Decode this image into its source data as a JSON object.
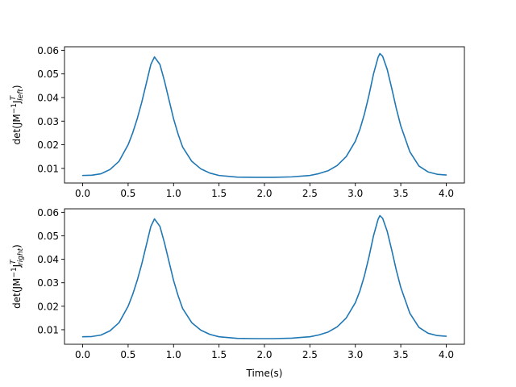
{
  "chart_data": [
    {
      "type": "line",
      "title": "",
      "xlabel": "",
      "ylabel": "det(JM^-1 J^T_left)",
      "ylabel_parts": {
        "pre": "det(JM",
        "sup1": "−1",
        "mid": "J",
        "sup2": "T",
        "sub": "left",
        "post": ")"
      },
      "xlim": [
        -0.2,
        4.2
      ],
      "ylim": [
        0.0038,
        0.0615
      ],
      "xticks": [
        0.0,
        0.5,
        1.0,
        1.5,
        2.0,
        2.5,
        3.0,
        3.5,
        4.0
      ],
      "xtick_labels": [
        "0.0",
        "0.5",
        "1.0",
        "1.5",
        "2.0",
        "2.5",
        "3.0",
        "3.5",
        "4.0"
      ],
      "yticks": [
        0.01,
        0.02,
        0.03,
        0.04,
        0.05,
        0.06
      ],
      "ytick_labels": [
        "0.01",
        "0.02",
        "0.03",
        "0.04",
        "0.05",
        "0.06"
      ],
      "grid": false,
      "legend": null,
      "color": "#1f77b4",
      "x": [
        0.0,
        0.1,
        0.2,
        0.3,
        0.4,
        0.5,
        0.55,
        0.6,
        0.65,
        0.7,
        0.75,
        0.79,
        0.85,
        0.9,
        0.95,
        1.0,
        1.05,
        1.1,
        1.2,
        1.3,
        1.4,
        1.5,
        1.7,
        1.9,
        2.1,
        2.3,
        2.5,
        2.6,
        2.7,
        2.8,
        2.9,
        3.0,
        3.05,
        3.1,
        3.15,
        3.2,
        3.25,
        3.27,
        3.3,
        3.35,
        3.4,
        3.45,
        3.5,
        3.6,
        3.7,
        3.8,
        3.9,
        4.0
      ],
      "y": [
        0.007,
        0.0071,
        0.0077,
        0.0095,
        0.013,
        0.02,
        0.025,
        0.031,
        0.038,
        0.046,
        0.054,
        0.0572,
        0.054,
        0.047,
        0.039,
        0.031,
        0.0245,
        0.019,
        0.013,
        0.0098,
        0.008,
        0.007,
        0.0063,
        0.0062,
        0.0062,
        0.0064,
        0.007,
        0.0078,
        0.009,
        0.0112,
        0.015,
        0.0215,
        0.0265,
        0.033,
        0.041,
        0.05,
        0.057,
        0.0586,
        0.0575,
        0.052,
        0.044,
        0.0355,
        0.028,
        0.017,
        0.011,
        0.0085,
        0.0075,
        0.0072
      ]
    },
    {
      "type": "line",
      "title": "",
      "xlabel": "Time(s)",
      "ylabel": "det(JM^-1 J^T_right)",
      "ylabel_parts": {
        "pre": "det(JM",
        "sup1": "−1",
        "mid": "J",
        "sup2": "T",
        "sub": "right",
        "post": ")"
      },
      "xlim": [
        -0.2,
        4.2
      ],
      "ylim": [
        0.0038,
        0.0615
      ],
      "xticks": [
        0.0,
        0.5,
        1.0,
        1.5,
        2.0,
        2.5,
        3.0,
        3.5,
        4.0
      ],
      "xtick_labels": [
        "0.0",
        "0.5",
        "1.0",
        "1.5",
        "2.0",
        "2.5",
        "3.0",
        "3.5",
        "4.0"
      ],
      "yticks": [
        0.01,
        0.02,
        0.03,
        0.04,
        0.05,
        0.06
      ],
      "ytick_labels": [
        "0.01",
        "0.02",
        "0.03",
        "0.04",
        "0.05",
        "0.06"
      ],
      "grid": false,
      "legend": null,
      "color": "#1f77b4",
      "x": [
        0.0,
        0.1,
        0.2,
        0.3,
        0.4,
        0.5,
        0.55,
        0.6,
        0.65,
        0.7,
        0.75,
        0.79,
        0.85,
        0.9,
        0.95,
        1.0,
        1.05,
        1.1,
        1.2,
        1.3,
        1.4,
        1.5,
        1.7,
        1.9,
        2.1,
        2.3,
        2.5,
        2.6,
        2.7,
        2.8,
        2.9,
        3.0,
        3.05,
        3.1,
        3.15,
        3.2,
        3.25,
        3.27,
        3.3,
        3.35,
        3.4,
        3.45,
        3.5,
        3.6,
        3.7,
        3.8,
        3.9,
        4.0
      ],
      "y": [
        0.007,
        0.0071,
        0.0077,
        0.0095,
        0.013,
        0.02,
        0.025,
        0.031,
        0.038,
        0.046,
        0.054,
        0.0572,
        0.054,
        0.047,
        0.039,
        0.031,
        0.0245,
        0.019,
        0.013,
        0.0098,
        0.008,
        0.007,
        0.0063,
        0.0062,
        0.0062,
        0.0064,
        0.007,
        0.0078,
        0.009,
        0.0112,
        0.015,
        0.0215,
        0.0265,
        0.033,
        0.041,
        0.05,
        0.057,
        0.0586,
        0.0575,
        0.052,
        0.044,
        0.0355,
        0.028,
        0.017,
        0.011,
        0.0085,
        0.0075,
        0.0072
      ]
    }
  ]
}
